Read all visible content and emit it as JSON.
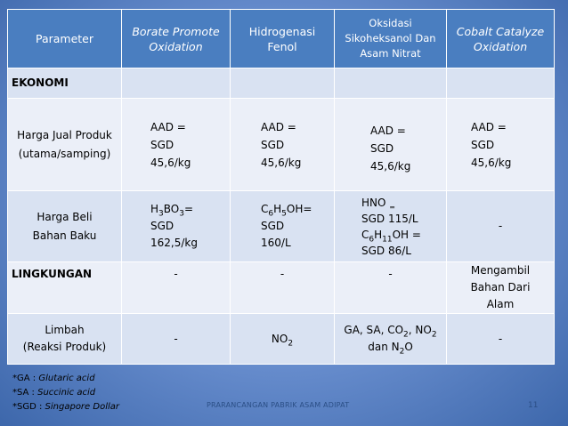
{
  "table": {
    "headers": {
      "param": "Parameter",
      "borate": [
        "Borate Promote",
        "Oxidation"
      ],
      "hidro": [
        "Hidrogenasi",
        "Fenol"
      ],
      "oksidasi": [
        "Oksidasi",
        "Sikoheksanol Dan",
        "Asam Nitrat"
      ],
      "cobalt": [
        "Cobalt Catalyze",
        "Oxidation"
      ]
    },
    "section_ekonomi": "EKONOMI",
    "harga_jual": {
      "label": [
        "Harga Jual Produk",
        "(utama/samping)"
      ],
      "borate": [
        "AAD =",
        "SGD",
        "45,6/kg"
      ],
      "hidro": [
        "AAD =",
        "SGD",
        "45,6/kg"
      ],
      "oksidasi": [
        "AAD =",
        "SGD",
        "45,6/kg"
      ],
      "cobalt": [
        "AAD =",
        "SGD",
        "45,6/kg"
      ]
    },
    "harga_beli": {
      "label": [
        "Harga Beli",
        "Bahan Baku"
      ],
      "borate": {
        "f1": "H",
        "s1": "3",
        "f2": "BO",
        "s2": "3",
        "f3": "=",
        "l2": "SGD",
        "l3": "162,5/kg"
      },
      "hidro": {
        "f1": "C",
        "s1": "6",
        "f2": "H",
        "s2": "5",
        "f3": "OH=",
        "l2": "SGD",
        "l3": "160/L"
      },
      "oksidasi": {
        "l1a": "HNO",
        "l1b": "=",
        "l2": "SGD 115/L",
        "f1": "C",
        "s1": "6",
        "f2": "H",
        "s2": "11",
        "f3": "OH =",
        "l4": "SGD 86/L"
      },
      "cobalt": "-"
    },
    "lingkungan": {
      "label": "LINGKUNGAN",
      "borate": "-",
      "hidro": "-",
      "oksidasi": "-",
      "cobalt": [
        "Mengambil",
        "Bahan Dari",
        "Alam"
      ]
    },
    "limbah": {
      "label": [
        "Limbah",
        "(Reaksi Produk)"
      ],
      "borate": "-",
      "hidro_a": "NO",
      "hidro_b": "2",
      "oks_a": "GA, SA, CO",
      "oks_b": "2",
      "oks_c": ", NO",
      "oks_d": "2",
      "oks_e": "dan N",
      "oks_f": "2",
      "oks_g": "O",
      "cobalt": "-"
    }
  },
  "footnotes": [
    {
      "prefix": "*GA : ",
      "term": "Glutaric acid"
    },
    {
      "prefix": "*SA : ",
      "term": "Succinic acid"
    },
    {
      "prefix": "*SGD : ",
      "term": "Singapore Dollar"
    }
  ],
  "footer": {
    "text": "PRARANCANGAN PABRIK ASAM ADIPAT",
    "page": "11"
  }
}
